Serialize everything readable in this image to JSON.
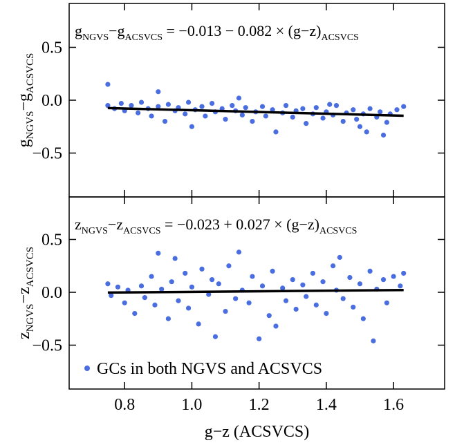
{
  "chart_data": [
    {
      "type": "scatter",
      "color": "#4a6ee0",
      "xlim": [
        0.635,
        1.752
      ],
      "ylim": [
        -0.915,
        0.915
      ],
      "ylabel": [
        [
          "g",
          "NGVS"
        ],
        [
          "−g",
          "ACSVCS"
        ]
      ],
      "equation": [
        [
          "g",
          "NGVS"
        ],
        [
          "−g",
          "ACSVCS"
        ],
        [
          " = −0.013 −  0.082 × (g−z)",
          "ACSVCS"
        ]
      ],
      "fit": {
        "intercept": -0.013,
        "slope": -0.082,
        "x_range": [
          0.75,
          1.63
        ]
      },
      "yticks": [
        0.5,
        {
          "value": 0,
          "label": "0.0"
        },
        {
          "value": -0.5,
          "label": "−0.5"
        }
      ],
      "xticks": [
        0.8,
        {
          "value": 1,
          "label": "1.0"
        },
        1.2,
        1.4,
        1.6
      ],
      "x": [
        0.75,
        0.75,
        0.77,
        0.79,
        0.8,
        0.82,
        0.84,
        0.85,
        0.87,
        0.88,
        0.9,
        0.9,
        0.92,
        0.93,
        0.95,
        0.96,
        0.98,
        0.99,
        1.0,
        1.01,
        1.03,
        1.04,
        1.06,
        1.07,
        1.09,
        1.1,
        1.12,
        1.13,
        1.15,
        1.16,
        1.18,
        1.19,
        1.21,
        1.22,
        1.24,
        1.25,
        1.27,
        1.28,
        1.3,
        1.31,
        1.33,
        1.34,
        1.36,
        1.37,
        1.39,
        1.4,
        1.42,
        1.43,
        1.45,
        1.46,
        1.48,
        1.49,
        1.51,
        1.52,
        1.53,
        1.55,
        1.56,
        1.58,
        1.59,
        1.61,
        1.63,
        1.57,
        1.5,
        1.41,
        1.14
      ],
      "y": [
        0.15,
        -0.05,
        -0.08,
        -0.03,
        -0.1,
        -0.05,
        -0.12,
        -0.02,
        -0.08,
        -0.15,
        0.08,
        -0.06,
        -0.2,
        -0.04,
        -0.1,
        -0.07,
        -0.13,
        -0.02,
        -0.25,
        -0.09,
        -0.06,
        -0.15,
        -0.03,
        -0.11,
        -0.08,
        -0.18,
        -0.05,
        -0.1,
        -0.14,
        -0.07,
        -0.2,
        -0.11,
        -0.06,
        -0.15,
        -0.09,
        -0.3,
        -0.12,
        -0.05,
        -0.16,
        -0.1,
        -0.08,
        -0.22,
        -0.13,
        -0.07,
        -0.17,
        -0.11,
        -0.14,
        -0.05,
        -0.2,
        -0.12,
        -0.09,
        -0.18,
        -0.13,
        -0.3,
        -0.08,
        -0.16,
        -0.11,
        -0.21,
        -0.13,
        -0.09,
        -0.06,
        -0.33,
        -0.25,
        -0.04,
        0.02
      ]
    },
    {
      "type": "scatter",
      "color": "#4a6ee0",
      "xlim": [
        0.635,
        1.752
      ],
      "ylim": [
        -0.915,
        0.902
      ],
      "ylabel": [
        [
          "z",
          "NGVS"
        ],
        [
          "−z",
          "ACSVCS"
        ]
      ],
      "equation": [
        [
          "z",
          "NGVS"
        ],
        [
          "−z",
          "ACSVCS"
        ],
        [
          " = −0.023 + 0.027 × (g−z)",
          "ACSVCS"
        ]
      ],
      "fit": {
        "intercept": -0.023,
        "slope": 0.027,
        "x_range": [
          0.75,
          1.63
        ]
      },
      "yticks": [
        0.5,
        {
          "value": 0,
          "label": "0.0"
        },
        {
          "value": -0.5,
          "label": "−0.5"
        }
      ],
      "xticks": [
        0.8,
        {
          "value": 1,
          "label": "1.0"
        },
        1.2,
        1.4,
        1.6
      ],
      "xlabel": "g−z (ACSVCS)",
      "legend": "GCs in both NGVS and ACSVCS",
      "x": [
        0.75,
        0.76,
        0.78,
        0.8,
        0.81,
        0.83,
        0.85,
        0.86,
        0.88,
        0.89,
        0.9,
        0.91,
        0.93,
        0.94,
        0.95,
        0.96,
        0.98,
        0.99,
        1.0,
        1.02,
        1.03,
        1.05,
        1.06,
        1.07,
        1.08,
        1.1,
        1.11,
        1.13,
        1.14,
        1.15,
        1.17,
        1.18,
        1.2,
        1.21,
        1.23,
        1.24,
        1.25,
        1.27,
        1.28,
        1.3,
        1.31,
        1.33,
        1.34,
        1.36,
        1.37,
        1.39,
        1.4,
        1.42,
        1.43,
        1.44,
        1.45,
        1.47,
        1.48,
        1.5,
        1.51,
        1.53,
        1.54,
        1.55,
        1.57,
        1.58,
        1.6,
        1.62,
        1.63
      ],
      "y": [
        0.08,
        -0.03,
        0.05,
        -0.1,
        0.02,
        -0.2,
        0.06,
        -0.05,
        0.15,
        -0.12,
        0.37,
        0.03,
        -0.25,
        0.1,
        0.32,
        -0.08,
        0.18,
        -0.15,
        0.05,
        -0.3,
        0.22,
        -0.02,
        0.12,
        -0.42,
        0.08,
        -0.18,
        0.25,
        -0.06,
        0.38,
        0.02,
        -0.1,
        0.15,
        -0.44,
        0.06,
        -0.22,
        0.2,
        -0.32,
        0.04,
        -0.08,
        0.12,
        -0.16,
        0.07,
        -0.04,
        0.18,
        -0.12,
        0.1,
        -0.2,
        0.25,
        0.02,
        0.33,
        -0.06,
        0.14,
        -0.14,
        0.08,
        -0.25,
        0.2,
        -0.46,
        0.03,
        0.12,
        -0.1,
        0.15,
        0.06,
        0.18
      ]
    }
  ]
}
